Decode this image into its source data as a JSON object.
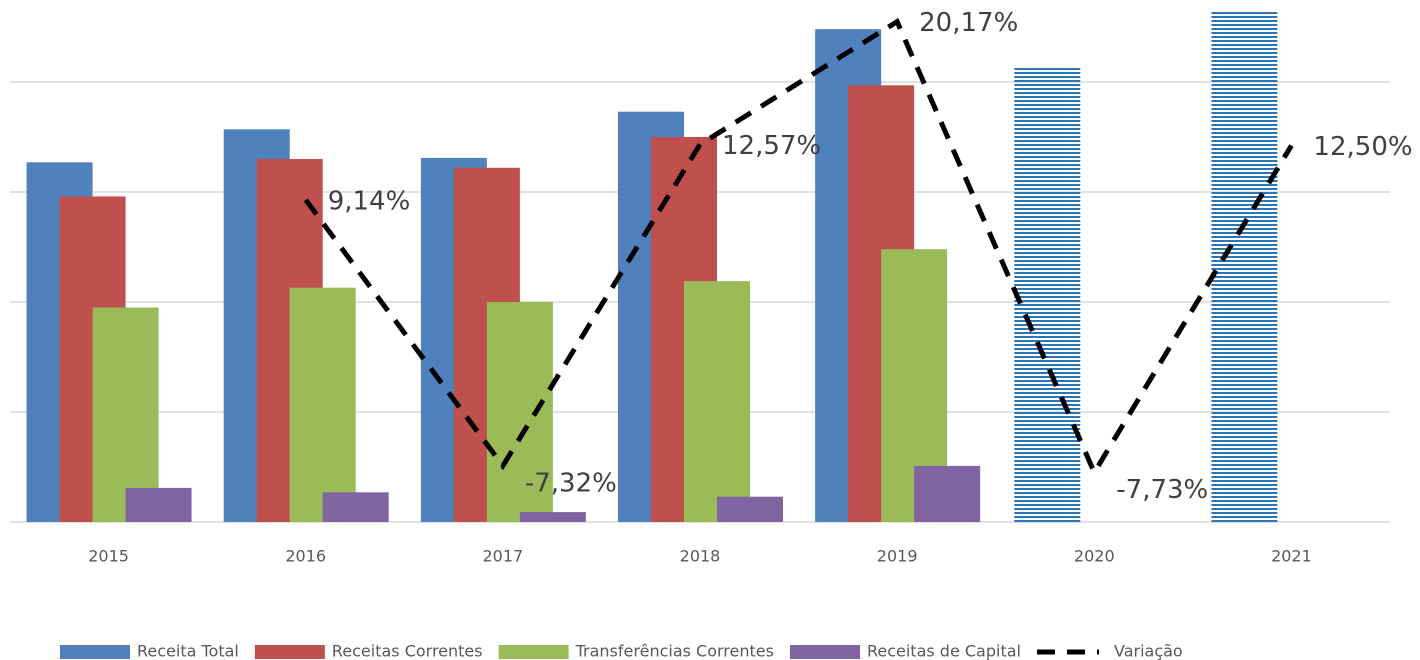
{
  "chart_data": {
    "type": "bar",
    "categories": [
      "2015",
      "2016",
      "2017",
      "2018",
      "2019",
      "2020",
      "2021"
    ],
    "series": [
      {
        "name": "Receita Total",
        "color": "#4f81bd",
        "values": [
          3.27,
          3.57,
          3.31,
          3.73,
          4.48,
          null,
          null
        ]
      },
      {
        "name": "Receitas Correntes",
        "color": "#c0504d",
        "values": [
          2.96,
          3.3,
          3.22,
          3.5,
          3.97,
          null,
          null
        ]
      },
      {
        "name": "Transferências Correntes",
        "color": "#9bbb59",
        "values": [
          1.95,
          2.13,
          2.0,
          2.19,
          2.48,
          null,
          null
        ]
      },
      {
        "name": "Receitas de Capital",
        "color": "#8064a2",
        "values": [
          0.31,
          0.27,
          0.09,
          0.23,
          0.51,
          null,
          null
        ]
      },
      {
        "name": "Variação",
        "color": "#000000",
        "type": "line",
        "axis": "y2",
        "dashed": true,
        "values": [
          null,
          9.14,
          -7.32,
          12.57,
          20.17,
          -7.73,
          12.5
        ],
        "value_labels": [
          null,
          "9,14%",
          "-7,32%",
          "12,57%",
          "20,17%",
          "-7,73%",
          "12,50%"
        ]
      }
    ],
    "projection": {
      "color": "#2e75b6",
      "hatch": "horizontal",
      "values": [
        null,
        null,
        null,
        null,
        null,
        4.13,
        4.64
      ]
    },
    "ylim": [
      0,
      4.7
    ],
    "yticks": [
      0,
      1,
      2,
      3,
      4
    ],
    "y2lim": [
      -10.8,
      21.2
    ],
    "grid": true,
    "legend": "bottom"
  }
}
